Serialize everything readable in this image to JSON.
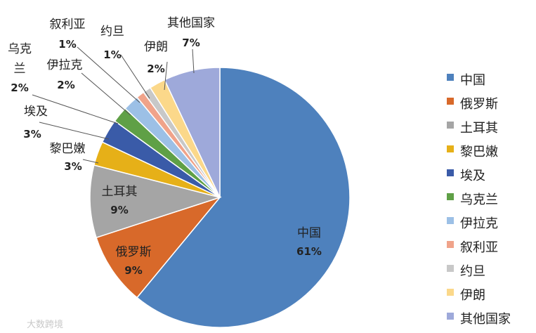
{
  "chart_data": {
    "type": "pie",
    "title": "",
    "categories": [
      "中国",
      "俄罗斯",
      "土耳其",
      "黎巴嫩",
      "埃及",
      "乌克兰",
      "伊拉克",
      "叙利亚",
      "约旦",
      "伊朗",
      "其他国家"
    ],
    "values": [
      61,
      9,
      9,
      3,
      3,
      2,
      2,
      1,
      1,
      2,
      7
    ],
    "value_labels": [
      "61%",
      "9%",
      "9%",
      "3%",
      "3%",
      "2%",
      "2%",
      "1%",
      "1%",
      "2%",
      "7%"
    ],
    "colors": [
      "#4e81bd",
      "#d8692a",
      "#a5a5a5",
      "#e6b018",
      "#3a5ba8",
      "#5fa046",
      "#9cc0e6",
      "#f0a38a",
      "#c8c8c8",
      "#fbd88a",
      "#9ea9da"
    ],
    "legend_position": "right"
  },
  "watermark": "大数跨境"
}
